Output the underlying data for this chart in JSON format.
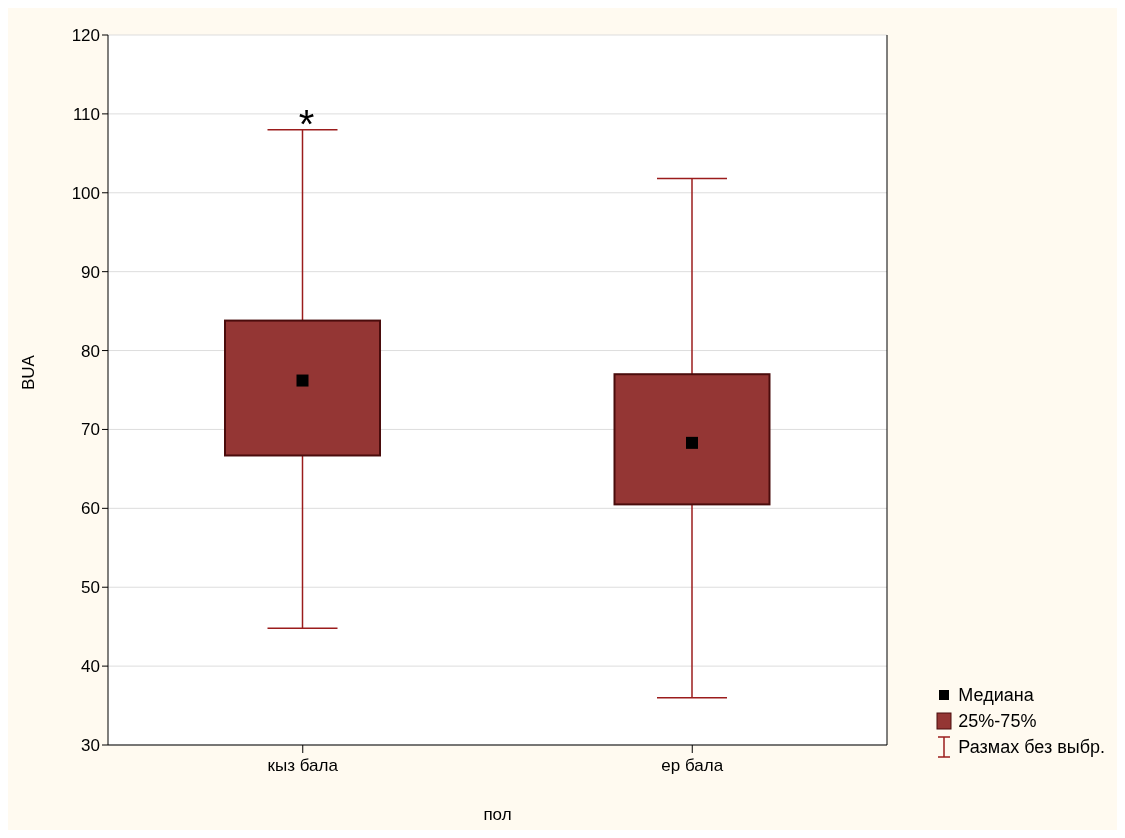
{
  "chart_data": {
    "type": "box",
    "xlabel": "пол",
    "ylabel": "BUA",
    "categories": [
      "кыз бала",
      "ер бала"
    ],
    "series": [
      {
        "name": "25%-75%",
        "color": "#943634",
        "boxes": [
          {
            "low": 44.8,
            "q1": 66.7,
            "median": 76.2,
            "q3": 83.8,
            "high": 108.0
          },
          {
            "low": 36.0,
            "q1": 60.5,
            "median": 68.3,
            "q3": 77.0,
            "high": 101.8
          }
        ]
      }
    ],
    "annotations": [
      "*",
      "Медиана",
      "Размах без выбр."
    ],
    "ylim": [
      30,
      120
    ],
    "yticks": [
      30,
      40,
      50,
      60,
      70,
      80,
      90,
      100,
      110,
      120
    ],
    "grid": "y",
    "legend": "bottom right"
  }
}
